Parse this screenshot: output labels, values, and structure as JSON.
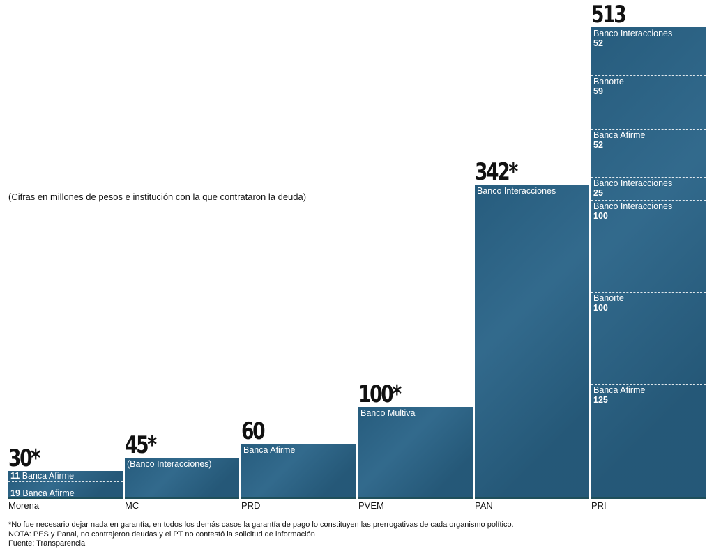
{
  "chart_data": {
    "type": "bar",
    "stacked": true,
    "title": "",
    "subtitle": "(Cifras en millones de pesos e institución con la que contrataron la deuda)",
    "xlabel": "",
    "ylabel": "",
    "ylim": [
      0,
      513
    ],
    "grid": false,
    "legend": "none",
    "categories": [
      "Morena",
      "MC",
      "PRD",
      "PVEM",
      "PAN",
      "PRI"
    ],
    "bars": [
      {
        "category": "Morena",
        "total": 30,
        "total_label": "30*",
        "segments": [
          {
            "value": 19,
            "lender": "Banca Afirme",
            "label_style": "inline"
          },
          {
            "value": 11,
            "lender": "Banca Afirme",
            "label_style": "inline"
          }
        ]
      },
      {
        "category": "MC",
        "total": 45,
        "total_label": "45*",
        "segments": [
          {
            "value": 45,
            "lender": "(Banco Interacciones)",
            "label_style": "name-only"
          }
        ]
      },
      {
        "category": "PRD",
        "total": 60,
        "total_label": "60",
        "segments": [
          {
            "value": 60,
            "lender": "Banca Afirme",
            "label_style": "name-only"
          }
        ]
      },
      {
        "category": "PVEM",
        "total": 100,
        "total_label": "100*",
        "segments": [
          {
            "value": 100,
            "lender": "Banco Multiva",
            "label_style": "name-only"
          }
        ]
      },
      {
        "category": "PAN",
        "total": 342,
        "total_label": "342*",
        "segments": [
          {
            "value": 342,
            "lender": "Banco Interacciones",
            "label_style": "name-only"
          }
        ]
      },
      {
        "category": "PRI",
        "total": 513,
        "total_label": "513",
        "segments": [
          {
            "value": 125,
            "lender": "Banca Afirme",
            "label_style": "stacked"
          },
          {
            "value": 100,
            "lender": "Banorte",
            "label_style": "stacked"
          },
          {
            "value": 100,
            "lender": "Banco Interacciones",
            "label_style": "stacked"
          },
          {
            "value": 25,
            "lender": "Banco Interacciones",
            "label_style": "stacked"
          },
          {
            "value": 52,
            "lender": "Banca Afirme",
            "label_style": "stacked"
          },
          {
            "value": 59,
            "lender": "Banorte",
            "label_style": "stacked"
          },
          {
            "value": 52,
            "lender": "Banco Interacciones",
            "label_style": "stacked"
          }
        ]
      }
    ],
    "colors": {
      "bar": "#2a6488",
      "text_on_bar": "#ffffff",
      "total_label": "#111111"
    }
  },
  "notes": {
    "footnote": "*No fue necesario dejar nada en garantía, en todos los demás casos la garantía de pago lo constituyen las prerrogativas de cada organismo político.",
    "nota": "NOTA: PES y Panal, no contrajeron deudas y el PT no contestó la solicitud de información",
    "source": "Fuente: Transparencia"
  }
}
